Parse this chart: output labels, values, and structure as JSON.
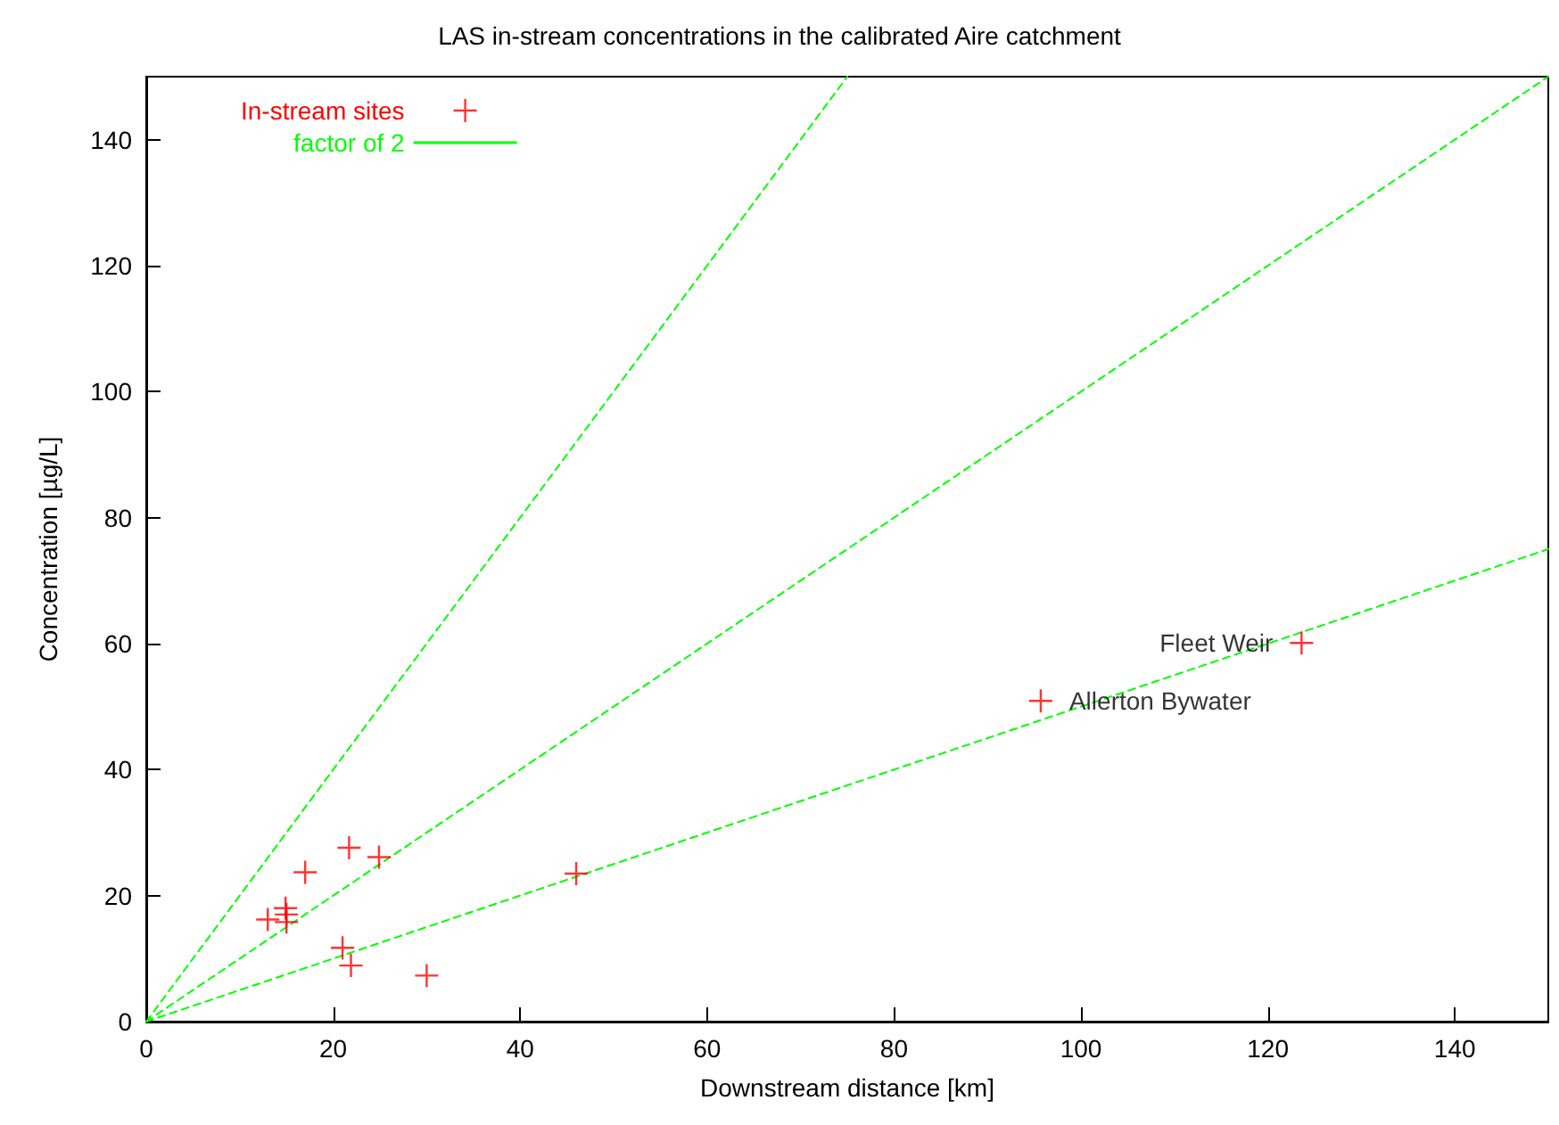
{
  "chart_data": {
    "type": "scatter",
    "title": "LAS in-stream concentrations in the calibrated Aire catchment",
    "xlabel": "Downstream distance [km]",
    "ylabel": "Concentration [µg/L]",
    "xlim": [
      0,
      150
    ],
    "ylim": [
      0,
      150
    ],
    "xticks": [
      0,
      20,
      40,
      60,
      80,
      100,
      120,
      140
    ],
    "yticks": [
      0,
      20,
      40,
      60,
      80,
      100,
      120,
      140
    ],
    "grid": false,
    "legend": "top left",
    "series": [
      {
        "name": "In-stream sites",
        "marker": "cross",
        "color": "#ff0000",
        "x": [
          13.0,
          14.9,
          15.0,
          15.0,
          17.0,
          21.0,
          21.9,
          21.7,
          24.9,
          30.0,
          46.0,
          95.7,
          123.6
        ],
        "values": [
          16.2,
          18.0,
          17.0,
          15.8,
          23.7,
          11.7,
          8.9,
          27.6,
          26.1,
          7.3,
          23.5,
          50.9,
          60.1
        ]
      },
      {
        "name": "factor of 2",
        "type": "line",
        "marker": "none",
        "line_style": "dashed",
        "color": "#00ff00",
        "x": [
          0,
          75
        ],
        "values": [
          0,
          150
        ]
      },
      {
        "type": "line",
        "marker": "none",
        "line_style": "dashed",
        "color": "#00ff00",
        "x": [
          0,
          150
        ],
        "values": [
          0,
          150
        ]
      },
      {
        "type": "line",
        "marker": "none",
        "line_style": "dashed",
        "color": "#00ff00",
        "x": [
          0,
          150
        ],
        "values": [
          0,
          75
        ]
      }
    ],
    "annotations": [
      {
        "text": "Fleet Weir",
        "x": 123.6,
        "y": 60.1
      },
      {
        "text": "Allerton Bywater",
        "x": 95.7,
        "y": 50.9
      }
    ]
  }
}
